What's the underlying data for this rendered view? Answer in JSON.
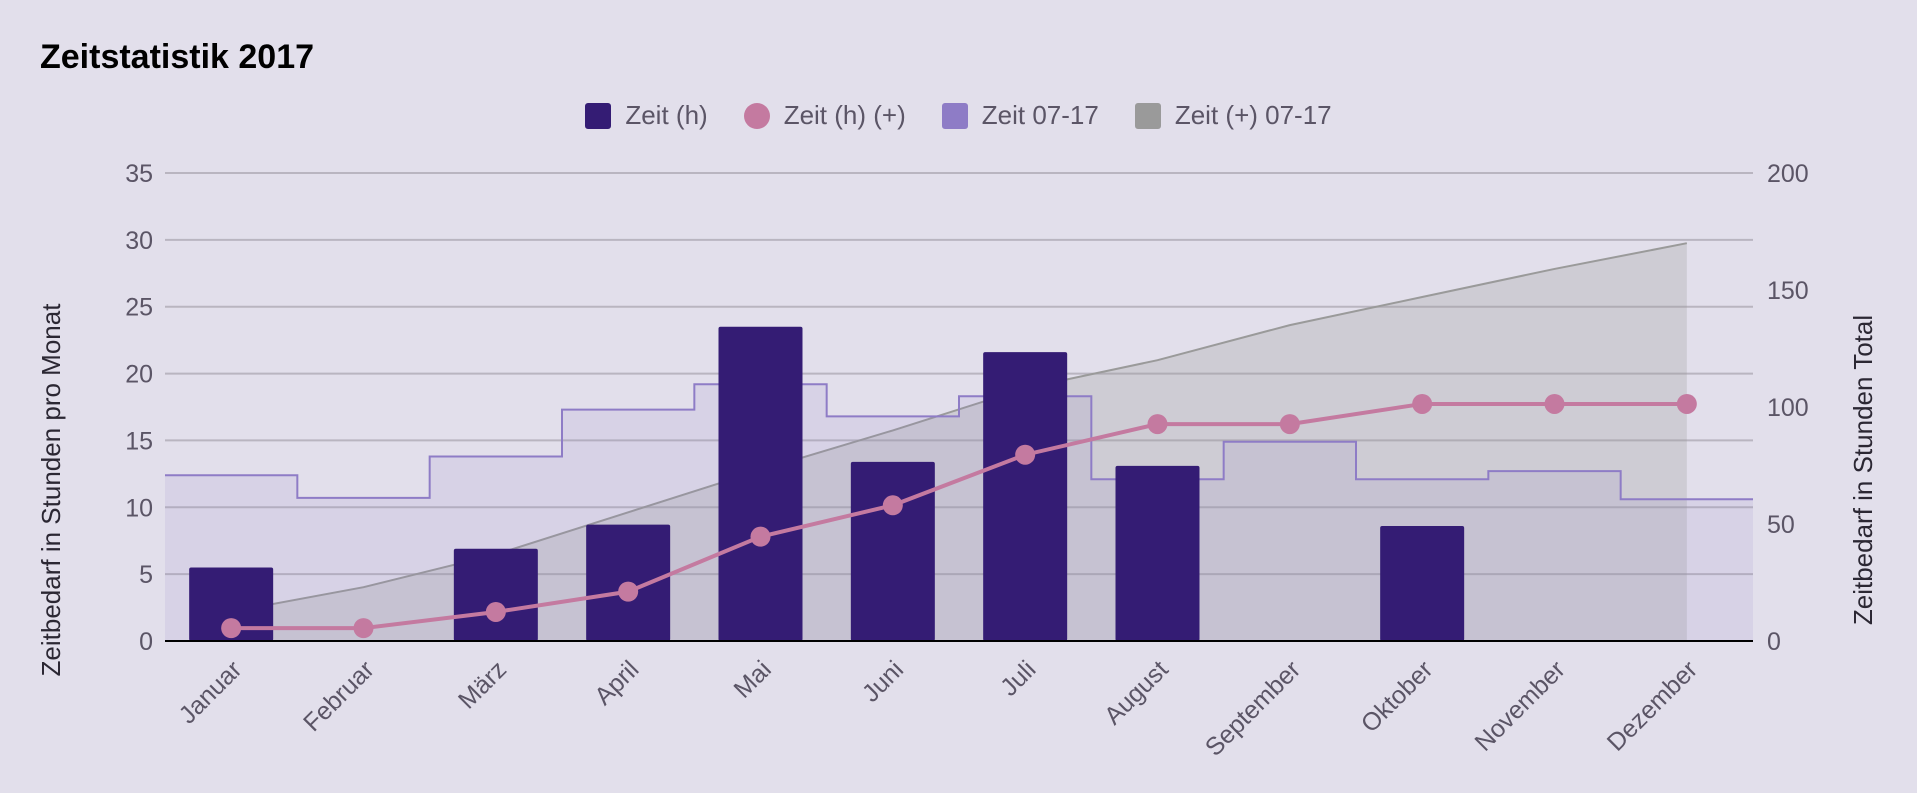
{
  "chart_data": {
    "type": "bar",
    "title": "Zeitstatistik 2017",
    "categories": [
      "Januar",
      "Februar",
      "März",
      "April",
      "Mai",
      "Juni",
      "Juli",
      "August",
      "September",
      "Oktober",
      "November",
      "Dezember"
    ],
    "series": [
      {
        "name": "Zeit (h)",
        "type": "bar",
        "axis": "left",
        "color": "#341c74",
        "values": [
          5.5,
          0,
          6.9,
          8.7,
          23.5,
          13.4,
          21.6,
          13.1,
          0,
          8.6,
          0,
          0
        ]
      },
      {
        "name": "Zeit (h) (+)",
        "type": "line",
        "axis": "right",
        "color": "#c47aa0",
        "values": [
          5.5,
          5.5,
          12.4,
          21.1,
          44.6,
          58.0,
          79.6,
          92.7,
          92.7,
          101.3,
          101.3,
          101.3
        ]
      },
      {
        "name": "Zeit 07-17",
        "type": "stepped-area",
        "axis": "left",
        "color": "#8e7cc6",
        "values": [
          12.4,
          10.7,
          13.8,
          17.3,
          19.2,
          16.8,
          18.3,
          12.1,
          14.9,
          12.1,
          12.7,
          10.6
        ]
      },
      {
        "name": "Zeit (+) 07-17",
        "type": "area",
        "axis": "right",
        "color": "#9a9a9a",
        "values": [
          12.5,
          23.0,
          37.0,
          55.0,
          73.0,
          90.0,
          108.0,
          120.0,
          135.0,
          147.0,
          159.0,
          170.0
        ]
      }
    ],
    "ylabel": "Zeitbedarf in Stunden pro Monat",
    "y2label": "Zeitbedarf in Stunden Total",
    "ylim": [
      0,
      35
    ],
    "y2lim": [
      0,
      200
    ],
    "yticks": [
      "0",
      "5",
      "10",
      "15",
      "20",
      "25",
      "30",
      "35"
    ],
    "y2ticks": [
      "0",
      "50",
      "100",
      "150",
      "200"
    ],
    "grid": true,
    "legend_position": "top"
  }
}
